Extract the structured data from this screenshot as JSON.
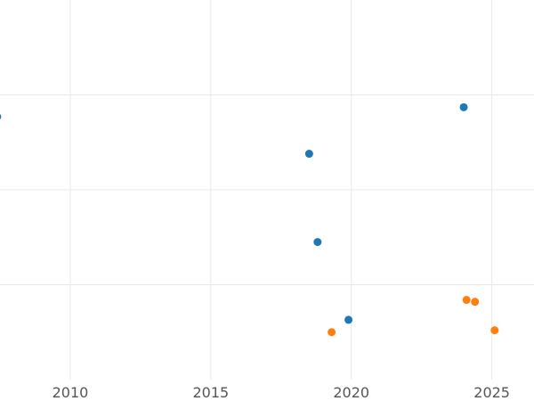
{
  "chart_data": {
    "type": "scatter",
    "xlim": [
      2007.5,
      2026.5
    ],
    "ylim": [
      0,
      4
    ],
    "x_ticks": [
      2010,
      2015,
      2020,
      2025
    ],
    "y_gridlines": [
      1,
      2,
      3
    ],
    "y_tick_labels_visible": false,
    "grid": true,
    "series": [
      {
        "color": "#1f77b4",
        "points": [
          {
            "x": 2007.4,
            "y": 2.77
          },
          {
            "x": 2018.5,
            "y": 2.38
          },
          {
            "x": 2018.8,
            "y": 1.45
          },
          {
            "x": 2019.9,
            "y": 0.63
          },
          {
            "x": 2024.0,
            "y": 2.87
          }
        ]
      },
      {
        "color": "#ff7f0e",
        "points": [
          {
            "x": 2019.3,
            "y": 0.5
          },
          {
            "x": 2024.1,
            "y": 0.84
          },
          {
            "x": 2024.4,
            "y": 0.82
          },
          {
            "x": 2025.1,
            "y": 0.52
          }
        ]
      }
    ]
  }
}
